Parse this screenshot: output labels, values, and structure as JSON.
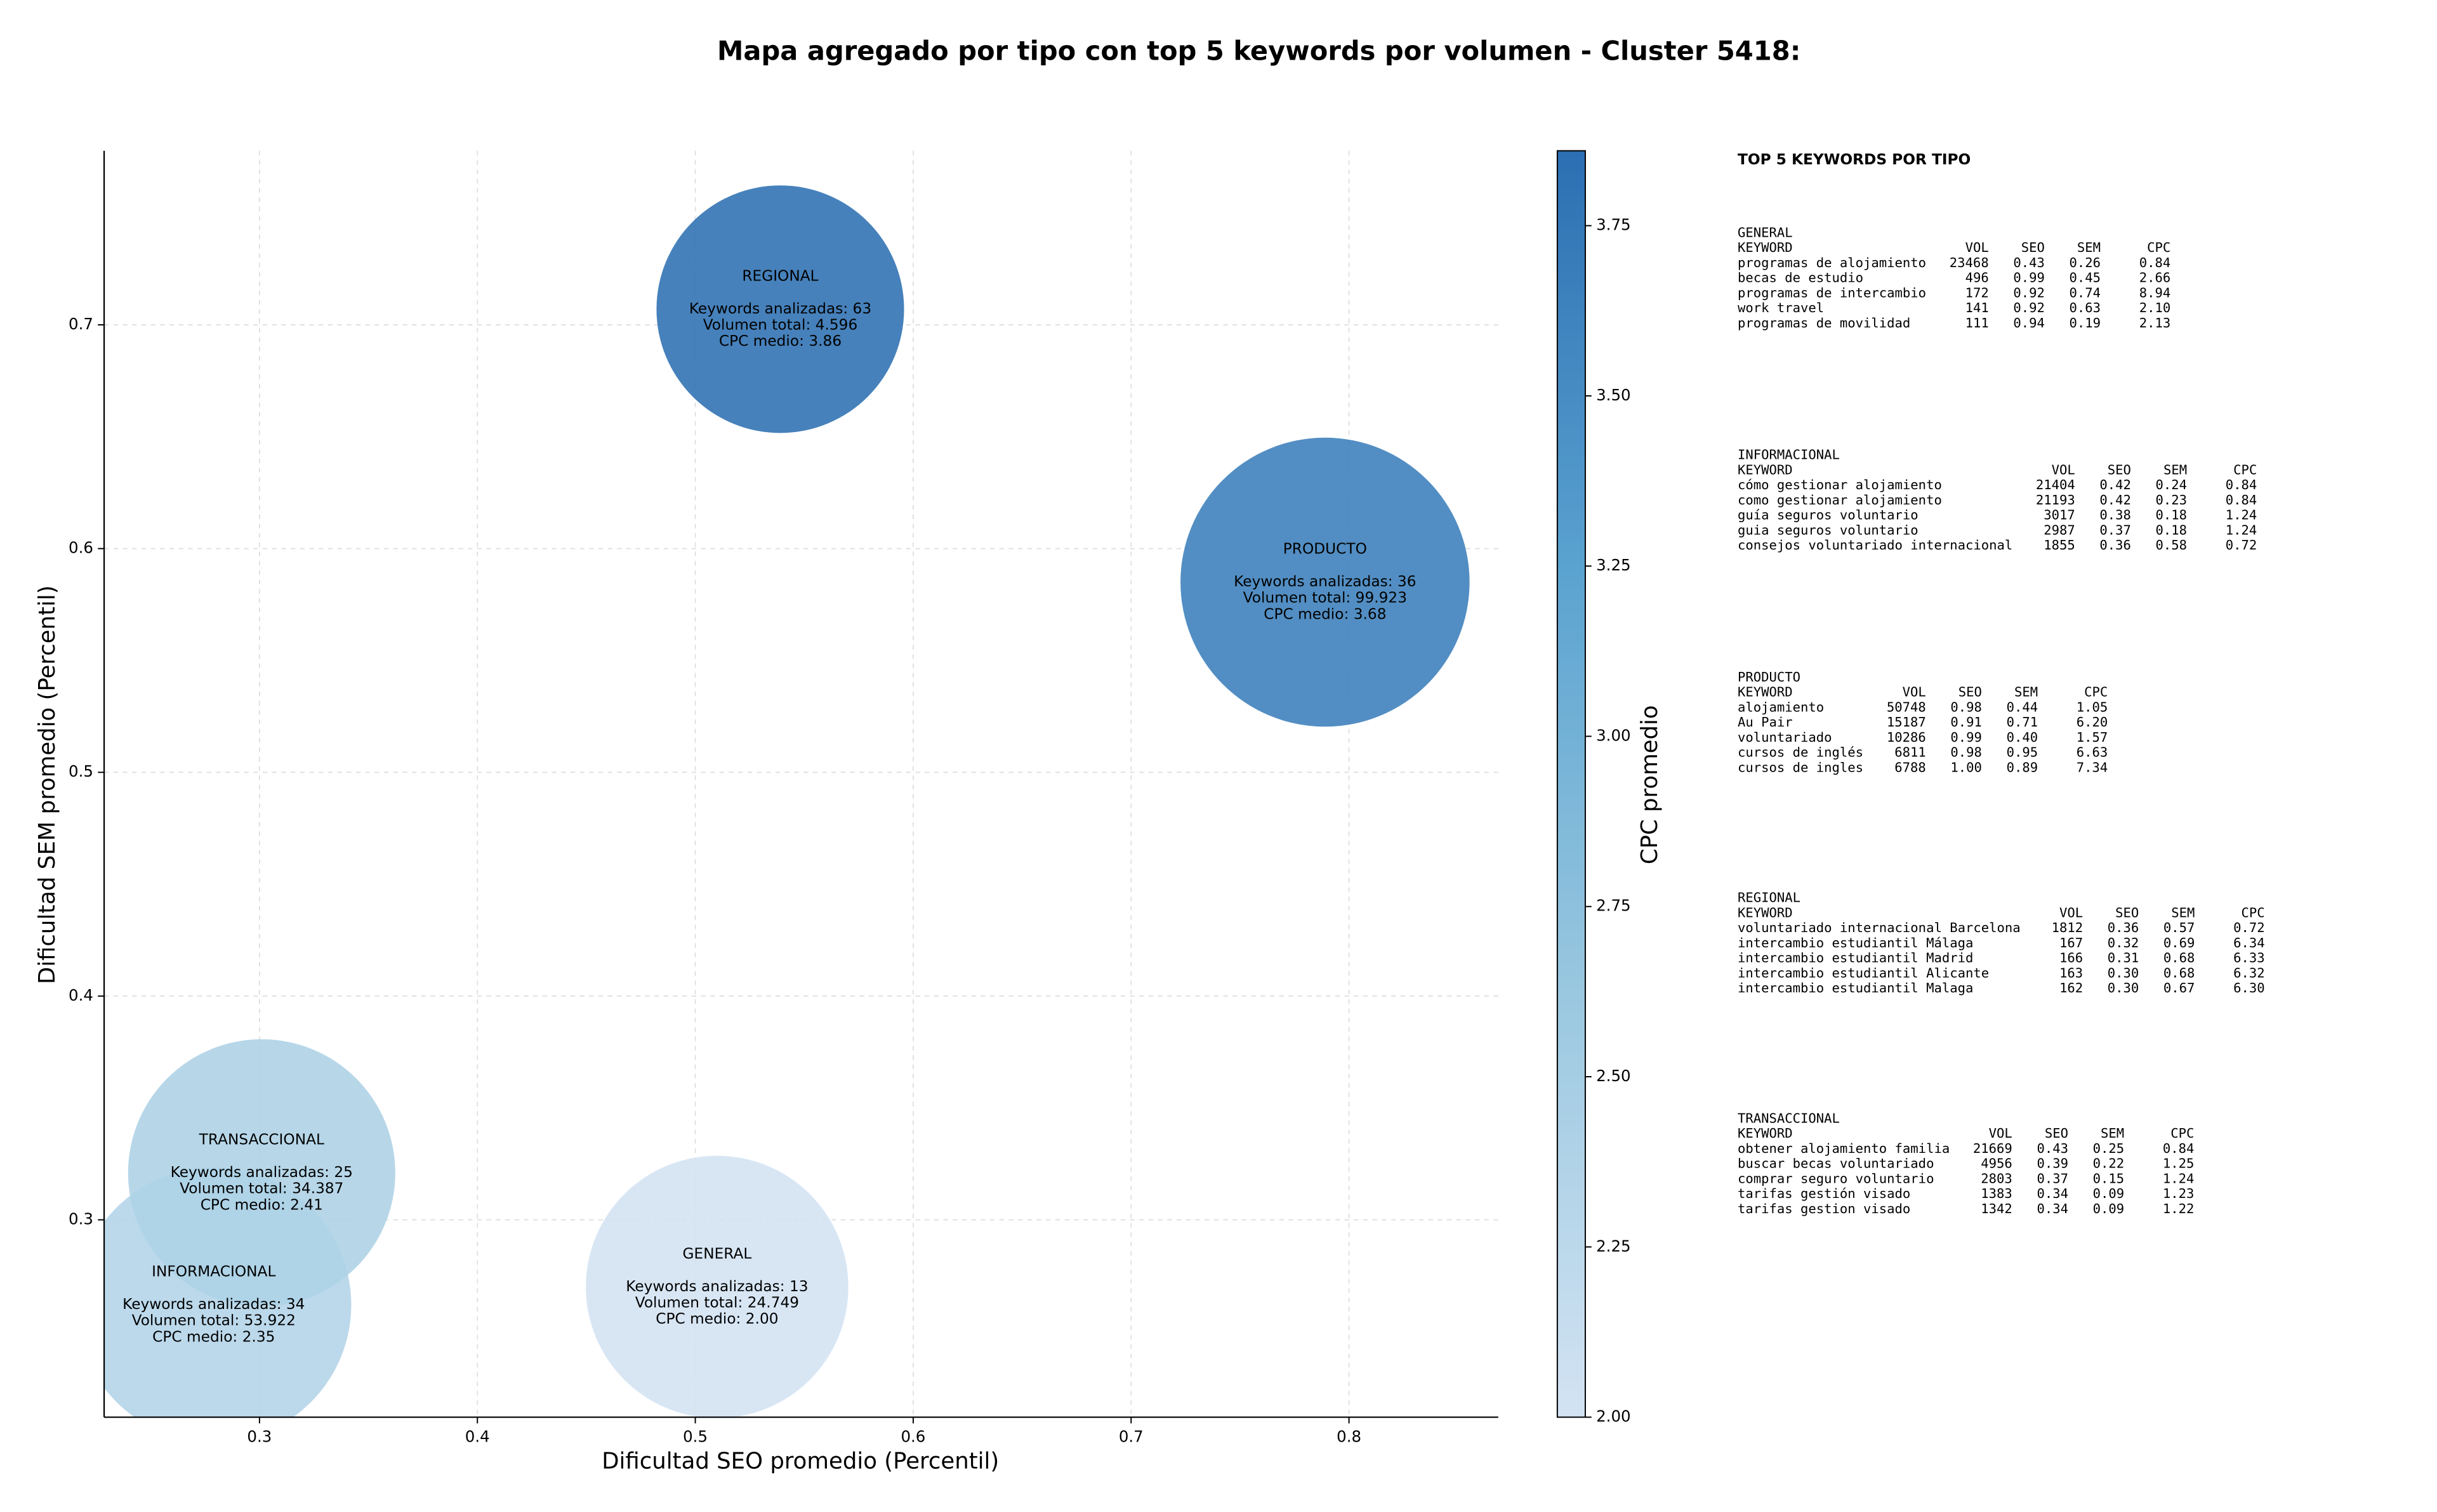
{
  "chart_data": {
    "type": "bubble",
    "title": "Mapa agregado por tipo con top 5 keywords por volumen - Cluster 5418:",
    "xlabel": "Dificultad SEO promedio (Percentil)",
    "ylabel": "Dificultad SEM promedio (Percentil)",
    "xlim": [
      0.2287,
      0.8685
    ],
    "ylim": [
      0.2118,
      0.7778
    ],
    "xticks": [
      0.3,
      0.4,
      0.5,
      0.6,
      0.7,
      0.8
    ],
    "yticks": [
      0.3,
      0.4,
      0.5,
      0.6,
      0.7
    ],
    "grid": true,
    "colorbar": {
      "label": "CPC promedio",
      "lim": [
        2.0,
        3.86
      ],
      "colormap": [
        "#d3e3f3",
        "#9ac8e0",
        "#5ba3d0",
        "#2c6fb2"
      ],
      "ticks": [
        {
          "value": 2.0,
          "label": "2.00"
        },
        {
          "value": 2.25,
          "label": "2.25"
        },
        {
          "value": 2.5,
          "label": "2.50"
        },
        {
          "value": 2.75,
          "label": "2.75"
        },
        {
          "value": 3.0,
          "label": "3.00"
        },
        {
          "value": 3.25,
          "label": "3.25"
        },
        {
          "value": 3.5,
          "label": "3.50"
        },
        {
          "value": 3.75,
          "label": "3.75"
        }
      ]
    },
    "points": [
      {
        "name": "GENERAL",
        "x": 0.51,
        "y": 0.27,
        "size": 24749,
        "cpc": 2.0,
        "annotation": [
          "Keywords analizadas: 13",
          "Volumen total: 24.749",
          "CPC medio: 2.00"
        ]
      },
      {
        "name": "INFORMACIONAL",
        "x": 0.279,
        "y": 0.262,
        "size": 53922,
        "cpc": 2.35,
        "annotation": [
          "Keywords analizadas: 34",
          "Volumen total: 53.922",
          "CPC medio: 2.35"
        ]
      },
      {
        "name": "PRODUCTO",
        "x": 0.789,
        "y": 0.585,
        "size": 99923,
        "cpc": 3.68,
        "annotation": [
          "Keywords analizadas: 36",
          "Volumen total: 99.923",
          "CPC medio: 3.68"
        ]
      },
      {
        "name": "REGIONAL",
        "x": 0.539,
        "y": 0.707,
        "size": 4596,
        "cpc": 3.86,
        "annotation": [
          "Keywords analizadas: 63",
          "Volumen total: 4.596",
          "CPC medio: 3.86"
        ]
      },
      {
        "name": "TRANSACCIONAL",
        "x": 0.301,
        "y": 0.321,
        "size": 34387,
        "cpc": 2.41,
        "annotation": [
          "Keywords analizadas: 25",
          "Volumen total: 34.387",
          "CPC medio: 2.41"
        ]
      }
    ]
  },
  "keyword_panel": {
    "title": "TOP 5 KEYWORDS POR TIPO",
    "tables": [
      {
        "name": "GENERAL",
        "columns": [
          "KEYWORD",
          "VOL",
          "SEO",
          "SEM",
          "CPC"
        ],
        "rows": [
          [
            "programas de alojamiento",
            "23468",
            "0.43",
            "0.26",
            "0.84"
          ],
          [
            "becas de estudio",
            "496",
            "0.99",
            "0.45",
            "2.66"
          ],
          [
            "programas de intercambio",
            "172",
            "0.92",
            "0.74",
            "8.94"
          ],
          [
            "work travel",
            "141",
            "0.92",
            "0.63",
            "2.10"
          ],
          [
            "programas de movilidad",
            "111",
            "0.94",
            "0.19",
            "2.13"
          ]
        ]
      },
      {
        "name": "INFORMACIONAL",
        "columns": [
          "KEYWORD",
          "VOL",
          "SEO",
          "SEM",
          "CPC"
        ],
        "rows": [
          [
            "cómo gestionar alojamiento",
            "21404",
            "0.42",
            "0.24",
            "0.84"
          ],
          [
            "como gestionar alojamiento",
            "21193",
            "0.42",
            "0.23",
            "0.84"
          ],
          [
            "guía seguros voluntario",
            "3017",
            "0.38",
            "0.18",
            "1.24"
          ],
          [
            "guia seguros voluntario",
            "2987",
            "0.37",
            "0.18",
            "1.24"
          ],
          [
            "consejos voluntariado internacional",
            "1855",
            "0.36",
            "0.58",
            "0.72"
          ]
        ]
      },
      {
        "name": "PRODUCTO",
        "columns": [
          "KEYWORD",
          "VOL",
          "SEO",
          "SEM",
          "CPC"
        ],
        "rows": [
          [
            "alojamiento",
            "50748",
            "0.98",
            "0.44",
            "1.05"
          ],
          [
            "Au Pair",
            "15187",
            "0.91",
            "0.71",
            "6.20"
          ],
          [
            "voluntariado",
            "10286",
            "0.99",
            "0.40",
            "1.57"
          ],
          [
            "cursos de inglés",
            "6811",
            "0.98",
            "0.95",
            "6.63"
          ],
          [
            "cursos de ingles",
            "6788",
            "1.00",
            "0.89",
            "7.34"
          ]
        ]
      },
      {
        "name": "REGIONAL",
        "columns": [
          "KEYWORD",
          "VOL",
          "SEO",
          "SEM",
          "CPC"
        ],
        "rows": [
          [
            "voluntariado internacional Barcelona",
            "1812",
            "0.36",
            "0.57",
            "0.72"
          ],
          [
            "intercambio estudiantil Málaga",
            "167",
            "0.32",
            "0.69",
            "6.34"
          ],
          [
            "intercambio estudiantil Madrid",
            "166",
            "0.31",
            "0.68",
            "6.33"
          ],
          [
            "intercambio estudiantil Alicante",
            "163",
            "0.30",
            "0.68",
            "6.32"
          ],
          [
            "intercambio estudiantil Malaga",
            "162",
            "0.30",
            "0.67",
            "6.30"
          ]
        ]
      },
      {
        "name": "TRANSACCIONAL",
        "columns": [
          "KEYWORD",
          "VOL",
          "SEO",
          "SEM",
          "CPC"
        ],
        "rows": [
          [
            "obtener alojamiento familia",
            "21669",
            "0.43",
            "0.25",
            "0.84"
          ],
          [
            "buscar becas voluntariado",
            "4956",
            "0.39",
            "0.22",
            "1.25"
          ],
          [
            "comprar seguro voluntario",
            "2803",
            "0.37",
            "0.15",
            "1.24"
          ],
          [
            "tarifas gestión visado",
            "1383",
            "0.34",
            "0.09",
            "1.23"
          ],
          [
            "tarifas gestion visado",
            "1342",
            "0.34",
            "0.09",
            "1.22"
          ]
        ]
      }
    ]
  }
}
